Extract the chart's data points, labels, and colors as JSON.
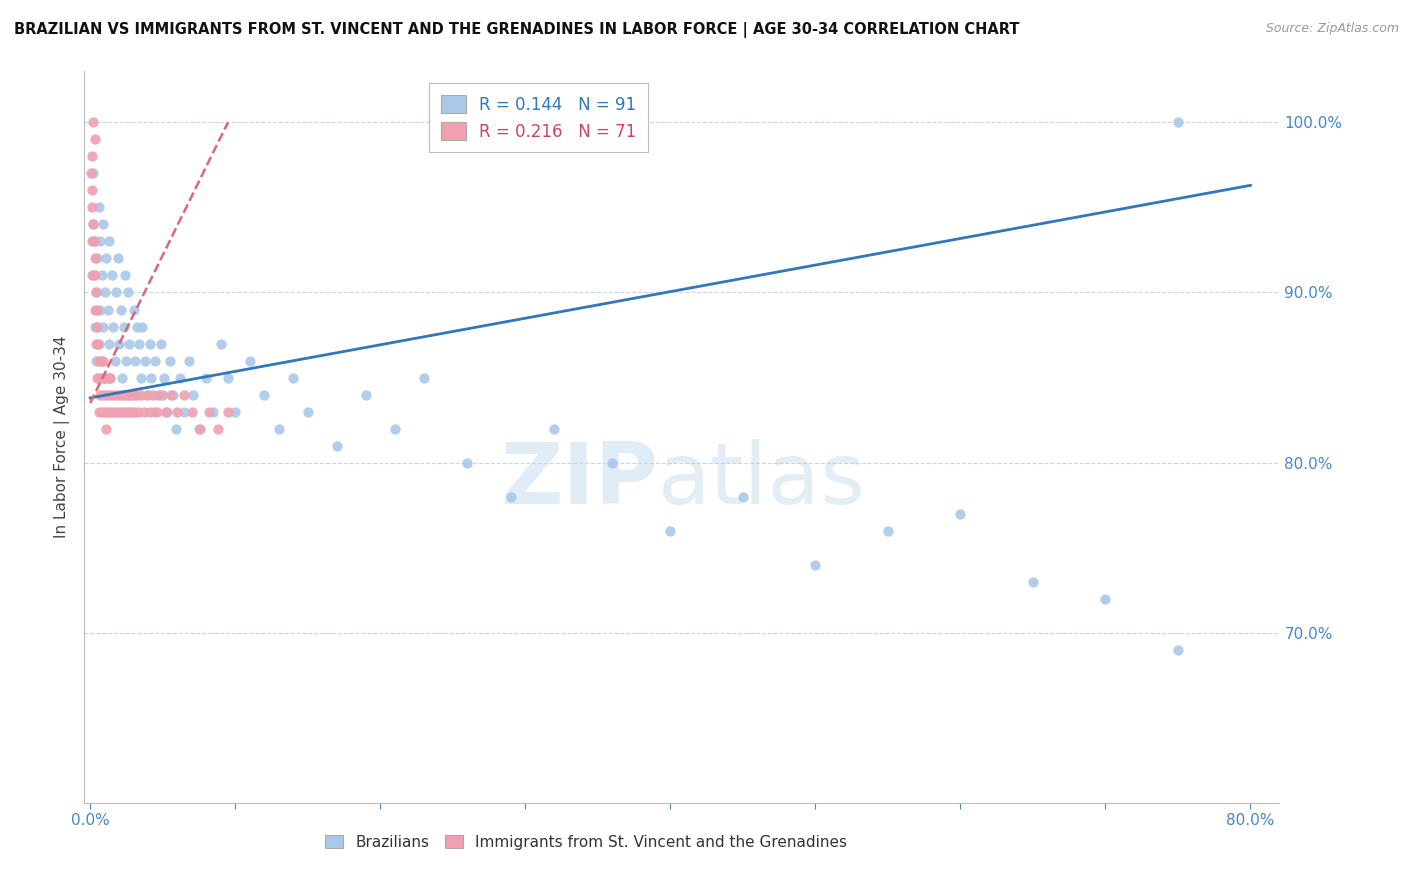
{
  "title": "BRAZILIAN VS IMMIGRANTS FROM ST. VINCENT AND THE GRENADINES IN LABOR FORCE | AGE 30-34 CORRELATION CHART",
  "source": "Source: ZipAtlas.com",
  "ylabel": "In Labor Force | Age 30-34",
  "legend_entry1": "R = 0.144   N = 91",
  "legend_entry2": "R = 0.216   N = 71",
  "legend_label1": "Brazilians",
  "legend_label2": "Immigrants from St. Vincent and the Grenadines",
  "blue_color": "#aac8e8",
  "pink_color": "#f0a0b0",
  "trend_blue": "#3377bb",
  "trend_pink": "#dd6677",
  "watermark_zip": "ZIP",
  "watermark_atlas": "atlas",
  "blue_scatter_x": [
    0.001,
    0.002,
    0.002,
    0.003,
    0.003,
    0.004,
    0.004,
    0.005,
    0.005,
    0.006,
    0.006,
    0.007,
    0.007,
    0.008,
    0.008,
    0.009,
    0.009,
    0.01,
    0.01,
    0.011,
    0.012,
    0.013,
    0.013,
    0.014,
    0.015,
    0.016,
    0.017,
    0.018,
    0.019,
    0.02,
    0.021,
    0.022,
    0.023,
    0.024,
    0.025,
    0.026,
    0.027,
    0.028,
    0.03,
    0.031,
    0.032,
    0.033,
    0.034,
    0.035,
    0.036,
    0.038,
    0.04,
    0.041,
    0.042,
    0.044,
    0.045,
    0.047,
    0.049,
    0.051,
    0.053,
    0.055,
    0.057,
    0.059,
    0.062,
    0.065,
    0.068,
    0.071,
    0.075,
    0.08,
    0.085,
    0.09,
    0.095,
    0.1,
    0.11,
    0.12,
    0.13,
    0.14,
    0.15,
    0.17,
    0.19,
    0.21,
    0.23,
    0.26,
    0.29,
    0.32,
    0.36,
    0.4,
    0.45,
    0.5,
    0.55,
    0.6,
    0.65,
    0.7,
    0.75,
    0.05,
    0.75
  ],
  "blue_scatter_y": [
    0.91,
    0.97,
    0.94,
    0.93,
    0.88,
    0.9,
    0.86,
    0.92,
    0.88,
    0.95,
    0.87,
    0.93,
    0.89,
    0.91,
    0.86,
    0.94,
    0.88,
    0.9,
    0.85,
    0.92,
    0.89,
    0.87,
    0.93,
    0.85,
    0.91,
    0.88,
    0.86,
    0.9,
    0.92,
    0.87,
    0.89,
    0.85,
    0.88,
    0.91,
    0.86,
    0.9,
    0.87,
    0.84,
    0.89,
    0.86,
    0.88,
    0.84,
    0.87,
    0.85,
    0.88,
    0.86,
    0.84,
    0.87,
    0.85,
    0.83,
    0.86,
    0.84,
    0.87,
    0.85,
    0.83,
    0.86,
    0.84,
    0.82,
    0.85,
    0.83,
    0.86,
    0.84,
    0.82,
    0.85,
    0.83,
    0.87,
    0.85,
    0.83,
    0.86,
    0.84,
    0.82,
    0.85,
    0.83,
    0.81,
    0.84,
    0.82,
    0.85,
    0.8,
    0.78,
    0.82,
    0.8,
    0.76,
    0.78,
    0.74,
    0.76,
    0.77,
    0.73,
    0.72,
    0.69,
    0.84,
    1.0
  ],
  "pink_scatter_x": [
    0.0005,
    0.001,
    0.001,
    0.0015,
    0.002,
    0.002,
    0.0025,
    0.003,
    0.003,
    0.0035,
    0.004,
    0.004,
    0.0045,
    0.005,
    0.005,
    0.0055,
    0.006,
    0.006,
    0.0065,
    0.007,
    0.007,
    0.008,
    0.008,
    0.009,
    0.009,
    0.01,
    0.01,
    0.011,
    0.011,
    0.012,
    0.012,
    0.013,
    0.014,
    0.014,
    0.015,
    0.016,
    0.017,
    0.018,
    0.019,
    0.02,
    0.021,
    0.022,
    0.023,
    0.024,
    0.025,
    0.026,
    0.027,
    0.028,
    0.029,
    0.03,
    0.031,
    0.033,
    0.035,
    0.037,
    0.039,
    0.041,
    0.043,
    0.046,
    0.049,
    0.052,
    0.056,
    0.06,
    0.065,
    0.07,
    0.076,
    0.082,
    0.088,
    0.095,
    0.001,
    0.003,
    0.002
  ],
  "pink_scatter_y": [
    0.97,
    0.96,
    0.93,
    0.95,
    0.94,
    0.91,
    0.93,
    0.92,
    0.89,
    0.91,
    0.9,
    0.87,
    0.89,
    0.88,
    0.85,
    0.87,
    0.86,
    0.83,
    0.85,
    0.84,
    0.86,
    0.85,
    0.83,
    0.86,
    0.84,
    0.85,
    0.83,
    0.84,
    0.82,
    0.83,
    0.85,
    0.84,
    0.83,
    0.85,
    0.84,
    0.83,
    0.84,
    0.83,
    0.84,
    0.83,
    0.84,
    0.83,
    0.84,
    0.83,
    0.84,
    0.83,
    0.84,
    0.83,
    0.84,
    0.83,
    0.84,
    0.83,
    0.84,
    0.83,
    0.84,
    0.83,
    0.84,
    0.83,
    0.84,
    0.83,
    0.84,
    0.83,
    0.84,
    0.83,
    0.82,
    0.83,
    0.82,
    0.83,
    0.98,
    0.99,
    1.0
  ],
  "xlim": [
    -0.004,
    0.82
  ],
  "ylim": [
    0.6,
    1.03
  ],
  "yticks": [
    0.7,
    0.8,
    0.9,
    1.0
  ],
  "xticks": [
    0.0,
    0.1,
    0.2,
    0.3,
    0.4,
    0.5,
    0.6,
    0.7,
    0.8
  ],
  "blue_trend_x": [
    0.0,
    0.8
  ],
  "blue_trend_y": [
    0.838,
    0.963
  ],
  "pink_trend_x": [
    0.0,
    0.095
  ],
  "pink_trend_y": [
    0.835,
    1.0
  ]
}
